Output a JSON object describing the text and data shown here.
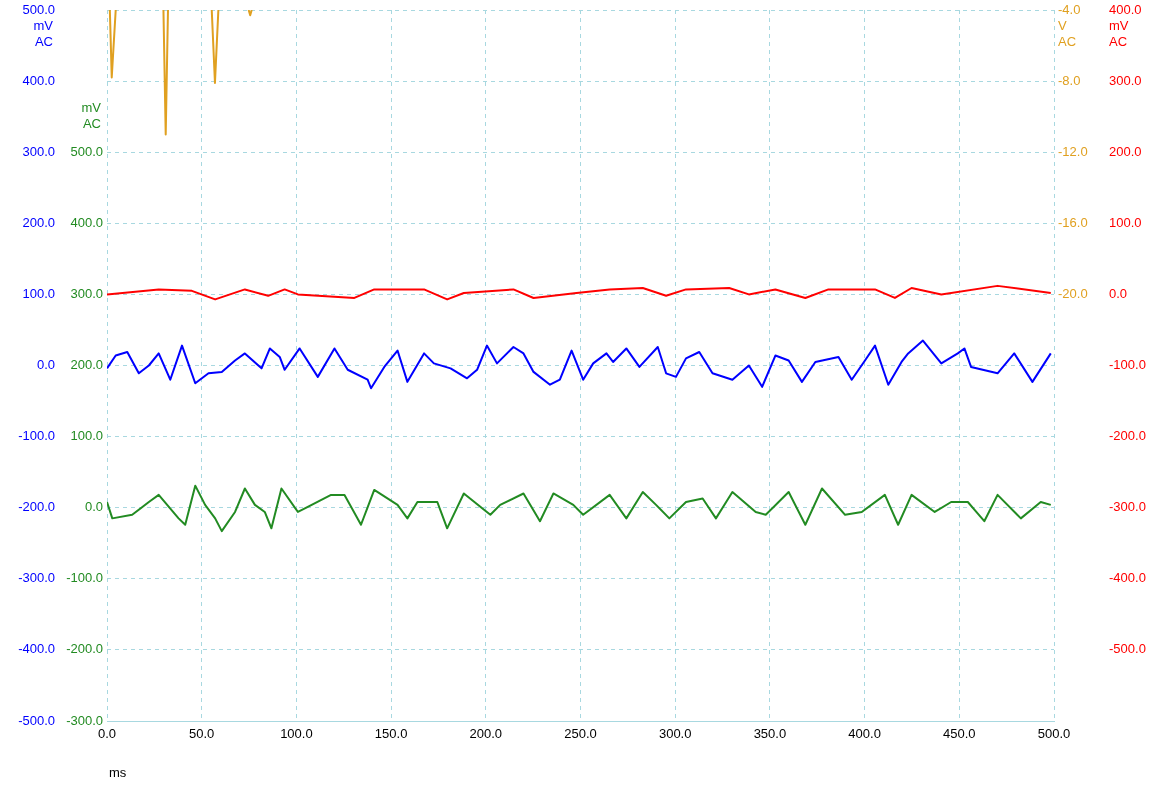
{
  "chart_data": [
    {
      "type": "line",
      "xlabel": "ms",
      "ylabel": "mV AC",
      "y2label": "mV AC",
      "y3label": "V AC",
      "xlim": [
        0,
        500
      ],
      "xticks": [
        {
          "value": 0,
          "label": "0.0"
        },
        {
          "value": 50,
          "label": "50.0"
        },
        {
          "value": 100,
          "label": "100.0"
        },
        {
          "value": 150,
          "label": "150.0"
        },
        {
          "value": 200,
          "label": "200.0"
        },
        {
          "value": 250,
          "label": "250.0"
        },
        {
          "value": 300,
          "label": "300.0"
        },
        {
          "value": 350,
          "label": "350.0"
        },
        {
          "value": 400,
          "label": "400.0"
        },
        {
          "value": 450,
          "label": "450.0"
        },
        {
          "value": 500,
          "label": "500.0"
        }
      ],
      "ylim": [
        -500,
        500
      ],
      "yticks": [
        {
          "value": -500,
          "label": "-500.0"
        },
        {
          "value": -400,
          "label": "-400.0"
        },
        {
          "value": -300,
          "label": "-300.0"
        },
        {
          "value": -200,
          "label": "-200.0"
        },
        {
          "value": -100,
          "label": "-100.0"
        },
        {
          "value": 0,
          "label": "0.0"
        },
        {
          "value": 100,
          "label": "100.0"
        },
        {
          "value": 200,
          "label": "200.0"
        },
        {
          "value": 300,
          "label": "300.0"
        },
        {
          "value": 400,
          "label": "400.0"
        },
        {
          "value": 500,
          "label": "500.0"
        }
      ],
      "y2lim": [
        -300,
        700
      ],
      "y2ticks": [
        {
          "value": -300,
          "label": "-300.0"
        },
        {
          "value": -200,
          "label": "-200.0"
        },
        {
          "value": -100,
          "label": "-100.0"
        },
        {
          "value": 0,
          "label": "0.0"
        },
        {
          "value": 100,
          "label": "100.0"
        },
        {
          "value": 200,
          "label": "200.0"
        },
        {
          "value": 300,
          "label": "300.0"
        },
        {
          "value": 400,
          "label": "400.0"
        },
        {
          "value": 500,
          "label": "500.0"
        }
      ],
      "y3lim": [
        -44,
        -4
      ],
      "y3ticks": [
        {
          "value": -20,
          "label": "-20.0"
        },
        {
          "value": -16,
          "label": "-16.0"
        },
        {
          "value": -12,
          "label": "-12.0"
        },
        {
          "value": -8,
          "label": "-8.0"
        },
        {
          "value": -4,
          "label": "-4.0"
        }
      ],
      "grid": true,
      "legend": false,
      "marker": "none",
      "line_style": "solid",
      "series": [
        {
          "color": "#0000ff",
          "axis": "y",
          "x": [
            0,
            4.6,
            10.7,
            16.8,
            22.1,
            27.3,
            33.4,
            39.6,
            46.6,
            53.6,
            60.6,
            67.6,
            72.8,
            81.6,
            86,
            91.2,
            93.8,
            101.7,
            111.3,
            120.1,
            127.1,
            137.6,
            139.4,
            146.4,
            153.4,
            158.6,
            167.4,
            172.6,
            181.4,
            190.1,
            195.4,
            200.6,
            205.9,
            214.6,
            219.9,
            225.2,
            233.9,
            239.1,
            245.3,
            251.4,
            256.7,
            263.7,
            267.2,
            274.2,
            281.1,
            290.8,
            295.2,
            300.4,
            305.7,
            312.7,
            319.7,
            330.2,
            338.9,
            345.9,
            352.9,
            359.9,
            366.9,
            374,
            386.2,
            393.2,
            400.2,
            405.5,
            412.5,
            419.5,
            423,
            430.8,
            440.5,
            449.2,
            452.7,
            456.2,
            470.2,
            479,
            488.6,
            498.3
          ],
          "values": [
            -4,
            14,
            19,
            -11,
            0,
            17,
            -20,
            28,
            -25,
            -11,
            -9,
            7,
            17,
            -4,
            24,
            12,
            -6,
            24,
            -16,
            24,
            -6,
            -20,
            -32,
            -2,
            21,
            -23,
            17,
            3,
            -4,
            -18,
            -6,
            28,
            3,
            26,
            17,
            -9,
            -27,
            -20,
            21,
            -20,
            3,
            17,
            5,
            24,
            -2,
            26,
            -11,
            -16,
            10,
            19,
            -11,
            -20,
            0,
            -30,
            14,
            7,
            -23,
            5,
            12,
            -20,
            7,
            28,
            -27,
            5,
            17,
            35,
            3,
            17,
            24,
            -2,
            -11,
            17,
            -23,
            17
          ]
        },
        {
          "color": "#228b22",
          "axis": "y2",
          "x": [
            0,
            2.8,
            13.3,
            22.1,
            27.3,
            37.8,
            41.3,
            46.6,
            51.8,
            57.1,
            60.6,
            67.6,
            72.8,
            78.1,
            83.3,
            86.8,
            92.1,
            100.8,
            118.3,
            125.4,
            134.1,
            141.1,
            153.4,
            158.6,
            163.9,
            174.4,
            179.6,
            188.4,
            202.4,
            207.6,
            219.9,
            228.6,
            235.7,
            246.2,
            251.4,
            265.4,
            274.2,
            282.9,
            289.9,
            296.9,
            305.7,
            314.5,
            321.5,
            330.2,
            342.5,
            347.8,
            359.9,
            368.7,
            377.5,
            389.7,
            398.5,
            410.7,
            417.7,
            424.8,
            437,
            445.7,
            454.5,
            463.2,
            470.2,
            482.5,
            493,
            498.3
          ],
          "values": [
            8,
            -15,
            -10,
            8,
            18,
            -15,
            -24,
            31,
            4,
            -15,
            -33,
            -6,
            27,
            4,
            -6,
            -29,
            27,
            -6,
            18,
            18,
            -24,
            25,
            4,
            -15,
            8,
            8,
            -29,
            20,
            -10,
            4,
            20,
            -19,
            20,
            4,
            -10,
            18,
            -15,
            22,
            4,
            -15,
            8,
            13,
            -15,
            22,
            -6,
            -10,
            22,
            -24,
            27,
            -10,
            -6,
            18,
            -24,
            18,
            -6,
            8,
            8,
            -19,
            18,
            -15,
            8,
            4
          ]
        },
        {
          "color": "#e0a020",
          "axis": "y3",
          "x": [
            1.5,
            2.5,
            4.6,
            10,
            29.8,
            31,
            32.2,
            40,
            55.3,
            57,
            58.8,
            65,
            74.8,
            75.6,
            76.4
          ],
          "values": [
            -4,
            -7.8,
            -4,
            null,
            -4,
            -11,
            -4,
            null,
            -4,
            -8.1,
            -4,
            null,
            -4,
            -4.3,
            -4
          ]
        }
      ]
    },
    {
      "type": "line",
      "ylabel": "mV AC",
      "xlim": [
        0,
        500
      ],
      "ylim": [
        -600,
        400
      ],
      "yticks": [
        {
          "value": -500,
          "label": "-500.0"
        },
        {
          "value": -400,
          "label": "-400.0"
        },
        {
          "value": -300,
          "label": "-300.0"
        },
        {
          "value": -200,
          "label": "-200.0"
        },
        {
          "value": -100,
          "label": "-100.0"
        },
        {
          "value": 0,
          "label": "0.0"
        },
        {
          "value": 100,
          "label": "100.0"
        },
        {
          "value": 200,
          "label": "200.0"
        },
        {
          "value": 300,
          "label": "300.0"
        },
        {
          "value": 400,
          "label": "400.0"
        }
      ],
      "tick_labels": "y",
      "legend": false,
      "marker": "none",
      "line_style": "solid",
      "series": [
        {
          "color": "#ff0000",
          "x": [
            0,
            27.3,
            44.8,
            57.1,
            72.8,
            85.1,
            93.8,
            100.8,
            130.6,
            141.1,
            167.4,
            179.6,
            188.4,
            214.6,
            225.2,
            247.9,
            265.4,
            282.9,
            295.2,
            305.7,
            328.5,
            338.9,
            352.9,
            368.7,
            380.9,
            405.5,
            416,
            424.8,
            440.5,
            470.2,
            498.3
          ],
          "values": [
            0,
            7,
            5,
            -7,
            7,
            -2,
            7,
            0,
            -5,
            7,
            7,
            -7,
            2,
            7,
            -5,
            2,
            7,
            9,
            -2,
            7,
            9,
            0,
            7,
            -5,
            7,
            7,
            -5,
            9,
            0,
            12,
            2
          ]
        }
      ]
    }
  ]
}
